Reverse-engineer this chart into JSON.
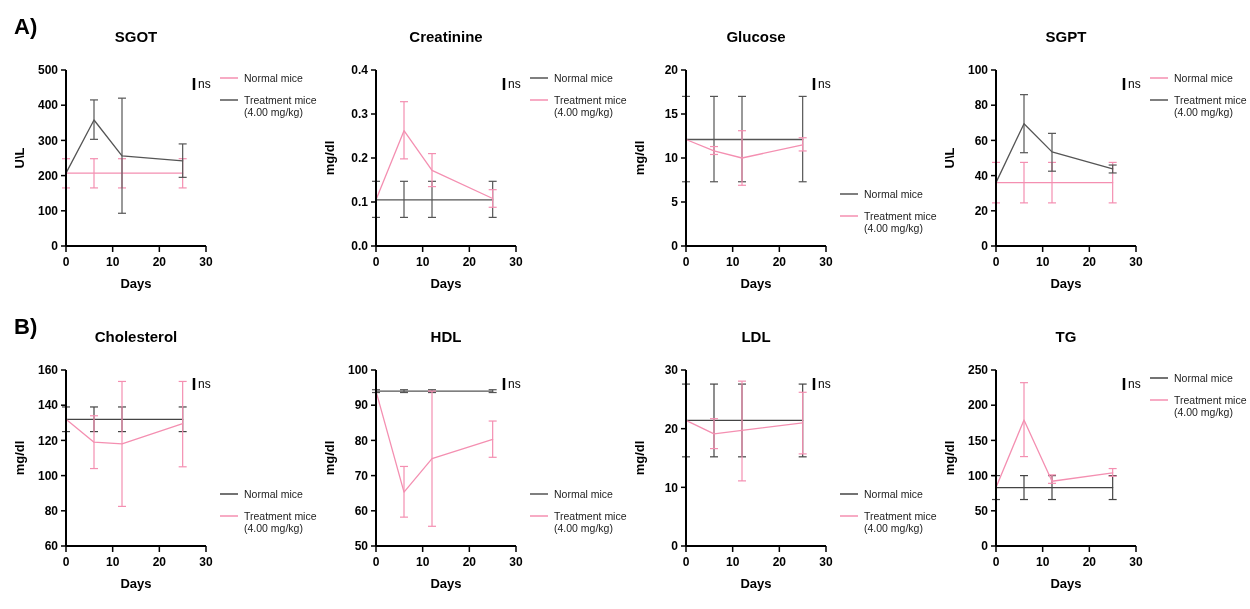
{
  "chart_data": [
    {
      "type": "line",
      "title": "SGOT",
      "xlabel": "Days",
      "ylabel": "U\\L",
      "subtitle": "A)",
      "annotations": [
        "ns"
      ],
      "x": [
        0,
        6,
        12,
        25
      ],
      "xlim": [
        0,
        30
      ],
      "xticks": [
        0,
        10,
        20,
        30
      ],
      "ylim": [
        0,
        500
      ],
      "yticks": [
        0,
        100,
        200,
        300,
        400,
        500
      ],
      "legend": "top right",
      "series": [
        {
          "name": "Normal mice",
          "color": "#f48fb1",
          "values": [
            207,
            207,
            207,
            207
          ],
          "errors": [
            [
              165,
              248
            ],
            [
              165,
              248
            ],
            [
              165,
              248
            ],
            [
              165,
              248
            ]
          ]
        },
        {
          "name": "Treatment mice (4.00 mg/kg)",
          "color": "#555555",
          "values": [
            207,
            358,
            256,
            242
          ],
          "errors": [
            null,
            [
              303,
              415
            ],
            [
              93,
              420
            ],
            [
              195,
              290
            ]
          ]
        }
      ]
    },
    {
      "type": "line",
      "title": "Creatinine",
      "xlabel": "Days",
      "ylabel": "mg/dl",
      "annotations": [
        "ns"
      ],
      "x": [
        0,
        6,
        12,
        25
      ],
      "xlim": [
        0,
        30
      ],
      "xticks": [
        0,
        10,
        20,
        30
      ],
      "ylim": [
        0,
        0.4
      ],
      "yticks": [
        {
          "value": 0,
          "label": "0.0"
        },
        0.1,
        0.2,
        0.3,
        0.4
      ],
      "legend": "top right",
      "series": [
        {
          "name": "Normal mice",
          "color": "#555555",
          "values": [
            0.105,
            0.105,
            0.105,
            0.105
          ],
          "errors": [
            [
              0.065,
              0.147
            ],
            [
              0.065,
              0.147
            ],
            [
              0.065,
              0.147
            ],
            [
              0.065,
              0.147
            ]
          ]
        },
        {
          "name": "Treatment mice (4.00 mg/kg)",
          "color": "#f48fb1",
          "values": [
            0.105,
            0.262,
            0.172,
            0.108
          ],
          "errors": [
            null,
            [
              0.198,
              0.328
            ],
            [
              0.135,
              0.21
            ],
            [
              0.088,
              0.128
            ]
          ]
        }
      ]
    },
    {
      "type": "line",
      "title": "Glucose",
      "xlabel": "Days",
      "ylabel": "mg/dl",
      "annotations": [
        "ns"
      ],
      "x": [
        0,
        6,
        12,
        25
      ],
      "xlim": [
        0,
        30
      ],
      "xticks": [
        0,
        10,
        20,
        30
      ],
      "ylim": [
        0,
        20
      ],
      "yticks": [
        0,
        5,
        10,
        15,
        20
      ],
      "legend": "bottom right",
      "series": [
        {
          "name": "Normal mice",
          "color": "#555555",
          "values": [
            12.1,
            12.1,
            12.1,
            12.1
          ],
          "errors": [
            [
              7.3,
              17
            ],
            [
              7.3,
              17
            ],
            [
              7.3,
              17
            ],
            [
              7.3,
              17
            ]
          ]
        },
        {
          "name": "Treatment mice (4.00 mg/kg)",
          "color": "#f48fb1",
          "values": [
            12.1,
            10.8,
            10,
            11.5
          ],
          "errors": [
            null,
            [
              10.4,
              11.3
            ],
            [
              6.9,
              13.1
            ],
            [
              10.8,
              12.3
            ]
          ]
        }
      ]
    },
    {
      "type": "line",
      "title": "SGPT",
      "xlabel": "Days",
      "ylabel": "U\\L",
      "annotations": [
        "ns"
      ],
      "x": [
        0,
        6,
        12,
        25
      ],
      "xlim": [
        0,
        30
      ],
      "xticks": [
        0,
        10,
        20,
        30
      ],
      "ylim": [
        0,
        100
      ],
      "yticks": [
        0,
        20,
        40,
        60,
        80,
        100
      ],
      "legend": "top right",
      "series": [
        {
          "name": "Normal mice",
          "color": "#f48fb1",
          "values": [
            36,
            36,
            36,
            36
          ],
          "errors": [
            [
              24.5,
              47.5
            ],
            [
              24.5,
              47.5
            ],
            [
              24.5,
              47.5
            ],
            [
              24.5,
              47.5
            ]
          ]
        },
        {
          "name": "Treatment mice (4.00 mg/kg)",
          "color": "#555555",
          "values": [
            36,
            69.5,
            53.5,
            43.8
          ],
          "errors": [
            null,
            [
              53,
              86
            ],
            [
              42.5,
              64
            ],
            [
              41.5,
              46
            ]
          ]
        }
      ]
    },
    {
      "type": "line",
      "title": "Cholesterol",
      "xlabel": "Days",
      "ylabel": "mg/dl",
      "subtitle": "B)",
      "annotations": [
        "ns"
      ],
      "x": [
        0,
        6,
        12,
        25
      ],
      "xlim": [
        0,
        30
      ],
      "xticks": [
        0,
        10,
        20,
        30
      ],
      "ylim": [
        60,
        160
      ],
      "yticks": [
        60,
        80,
        100,
        120,
        140,
        160
      ],
      "legend": "bottom right",
      "series": [
        {
          "name": "Normal mice",
          "color": "#444444",
          "values": [
            132,
            132,
            132,
            132
          ],
          "errors": [
            [
              125,
              139
            ],
            [
              125,
              139
            ],
            [
              125,
              139
            ],
            [
              125,
              139
            ]
          ]
        },
        {
          "name": "Treatment mice (4.00 mg/kg)",
          "color": "#f48fb1",
          "values": [
            132,
            119,
            118,
            129.5
          ],
          "errors": [
            null,
            [
              104,
              134
            ],
            [
              82.5,
              153.5
            ],
            [
              105,
              153.5
            ]
          ]
        }
      ]
    },
    {
      "type": "line",
      "title": "HDL",
      "xlabel": "Days",
      "ylabel": "mg/dl",
      "annotations": [
        "ns"
      ],
      "x": [
        0,
        6,
        12,
        25
      ],
      "xlim": [
        0,
        30
      ],
      "xticks": [
        0,
        10,
        20,
        30
      ],
      "ylim": [
        50,
        100
      ],
      "yticks": [
        50,
        60,
        70,
        80,
        90,
        100
      ],
      "legend": "bottom right",
      "series": [
        {
          "name": "Normal mice",
          "color": "#555555",
          "values": [
            94,
            94,
            94,
            94
          ],
          "errors": [
            [
              93.6,
              94.4
            ],
            [
              93.6,
              94.4
            ],
            [
              93.6,
              94.4
            ],
            [
              93.6,
              94.4
            ]
          ]
        },
        {
          "name": "Treatment mice (4.00 mg/kg)",
          "color": "#f48fb1",
          "values": [
            94,
            65.3,
            74.8,
            80.3
          ],
          "errors": [
            null,
            [
              58.2,
              72.6
            ],
            [
              55.6,
              94
            ],
            [
              75.2,
              85.5
            ]
          ]
        }
      ]
    },
    {
      "type": "line",
      "title": "LDL",
      "xlabel": "Days",
      "ylabel": "mg/dl",
      "annotations": [
        "ns"
      ],
      "x": [
        0,
        6,
        12,
        25
      ],
      "xlim": [
        0,
        30
      ],
      "xticks": [
        0,
        10,
        20,
        30
      ],
      "ylim": [
        0,
        30
      ],
      "yticks": [
        0,
        10,
        20,
        30
      ],
      "legend": "bottom right",
      "series": [
        {
          "name": "Normal mice",
          "color": "#444444",
          "values": [
            21.4,
            21.4,
            21.4,
            21.4
          ],
          "errors": [
            [
              15.2,
              27.6
            ],
            [
              15.2,
              27.6
            ],
            [
              15.2,
              27.6
            ],
            [
              15.2,
              27.6
            ]
          ]
        },
        {
          "name": "Treatment mice (4.00 mg/kg)",
          "color": "#f48fb1",
          "values": [
            21.4,
            19.1,
            19.7,
            21
          ],
          "errors": [
            null,
            [
              16.6,
              21.7
            ],
            [
              11.1,
              28.1
            ],
            [
              15.7,
              26.2
            ]
          ]
        }
      ]
    },
    {
      "type": "line",
      "title": "TG",
      "xlabel": "Days",
      "ylabel": "mg/dl",
      "annotations": [
        "ns"
      ],
      "x": [
        0,
        6,
        12,
        25
      ],
      "xlim": [
        0,
        30
      ],
      "xticks": [
        0,
        10,
        20,
        30
      ],
      "ylim": [
        0,
        250
      ],
      "yticks": [
        0,
        50,
        100,
        150,
        200,
        250
      ],
      "legend": "top right",
      "series": [
        {
          "name": "Normal mice",
          "color": "#444444",
          "values": [
            83,
            83,
            83,
            83
          ],
          "errors": [
            [
              66,
              100
            ],
            [
              66,
              100
            ],
            [
              66,
              100
            ],
            [
              66,
              100
            ]
          ]
        },
        {
          "name": "Treatment mice (4.00 mg/kg)",
          "color": "#f48fb1",
          "values": [
            83,
            179,
            92,
            104
          ],
          "errors": [
            null,
            [
              127,
              232
            ],
            [
              89,
              101
            ],
            [
              99,
              110
            ]
          ]
        }
      ]
    }
  ]
}
